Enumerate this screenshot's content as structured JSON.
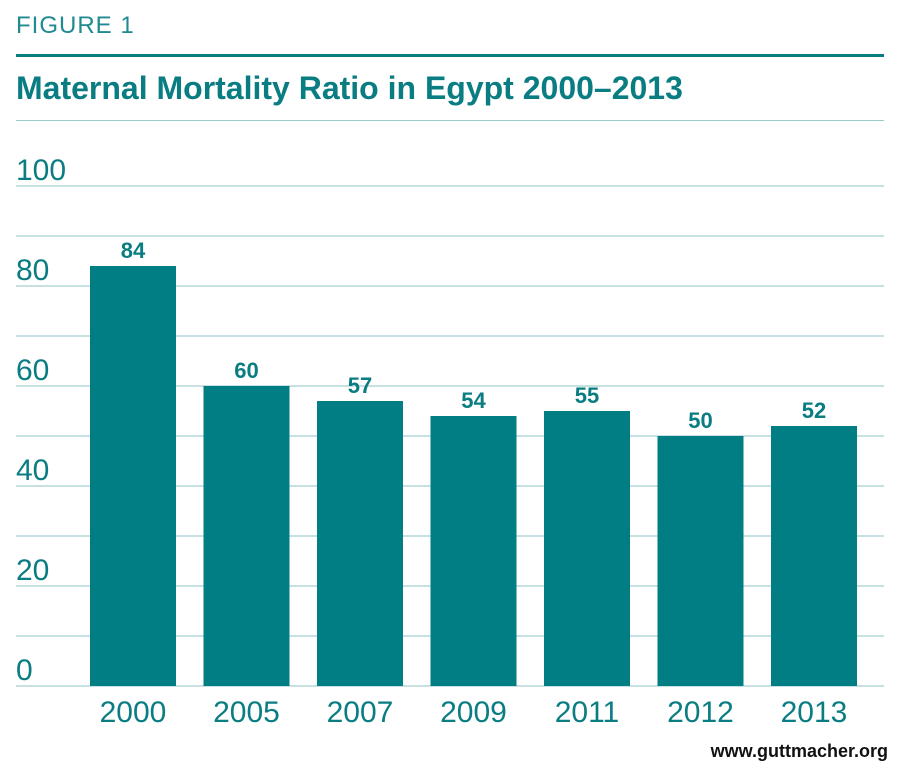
{
  "figure_label": "FIGURE 1",
  "source": "www.guttmacher.org",
  "colors": {
    "bar": "#007e83",
    "text": "#0a7d82",
    "grid": "#8fc3c6"
  },
  "chart_data": {
    "type": "bar",
    "title": "Maternal Mortality Ratio in Egypt 2000–2013",
    "xlabel": "",
    "ylabel": "",
    "categories": [
      "2000",
      "2005",
      "2007",
      "2009",
      "2011",
      "2012",
      "2013"
    ],
    "values": [
      84,
      60,
      57,
      54,
      55,
      50,
      52
    ],
    "data_labels": [
      "84",
      "60",
      "57",
      "54",
      "55",
      "50",
      "52"
    ],
    "ylim": [
      0,
      100
    ],
    "yticks": [
      0,
      20,
      40,
      60,
      80,
      100
    ],
    "ytick_labels": [
      "0",
      "20",
      "40",
      "60",
      "80",
      "100"
    ],
    "grid_step": 10,
    "grid": true,
    "legend": "none"
  }
}
